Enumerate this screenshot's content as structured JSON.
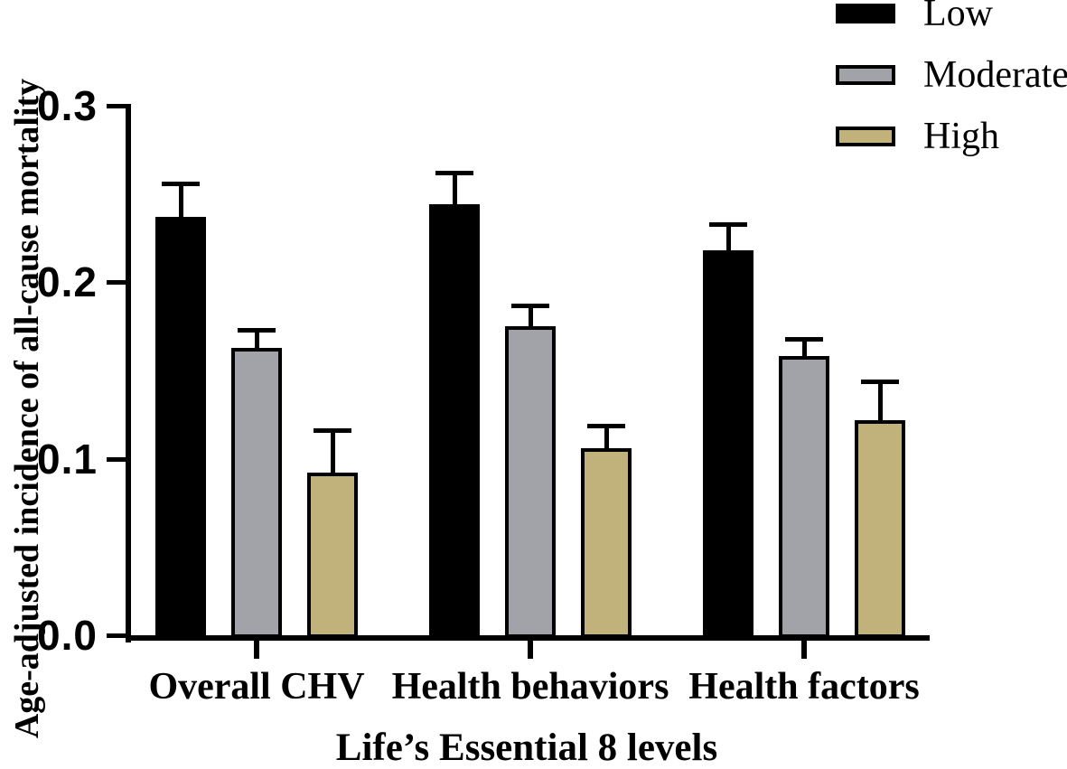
{
  "chart_data": {
    "type": "bar",
    "title": "",
    "xlabel": "Life’s Essential 8 levels",
    "ylabel": "Age-adjusted incidence of all-cause mortality",
    "categories": [
      "Overall CHV",
      "Health behaviors",
      "Health factors"
    ],
    "series": [
      {
        "name": "Low",
        "color": "#000000",
        "values": [
          0.237,
          0.244,
          0.218
        ],
        "errors_upper": [
          0.019,
          0.018,
          0.015
        ]
      },
      {
        "name": "Moderate",
        "color": "#A2A3A8",
        "values": [
          0.163,
          0.175,
          0.158
        ],
        "errors_upper": [
          0.01,
          0.012,
          0.01
        ]
      },
      {
        "name": "High",
        "color": "#C1B27C",
        "values": [
          0.092,
          0.106,
          0.122
        ],
        "errors_upper": [
          0.024,
          0.013,
          0.022
        ]
      }
    ],
    "ylim": [
      0,
      0.3
    ],
    "yticks": [
      0,
      0.1,
      0.2,
      0.3
    ],
    "ytick_labels": [
      "0.0",
      "0.1",
      "0.2",
      "0.3"
    ],
    "legend": {
      "position": "top-right",
      "entries": [
        "Low",
        "Moderate",
        "High"
      ]
    },
    "grid": false,
    "error_bars": "upper-only with caps",
    "axis_color": "#000000"
  }
}
